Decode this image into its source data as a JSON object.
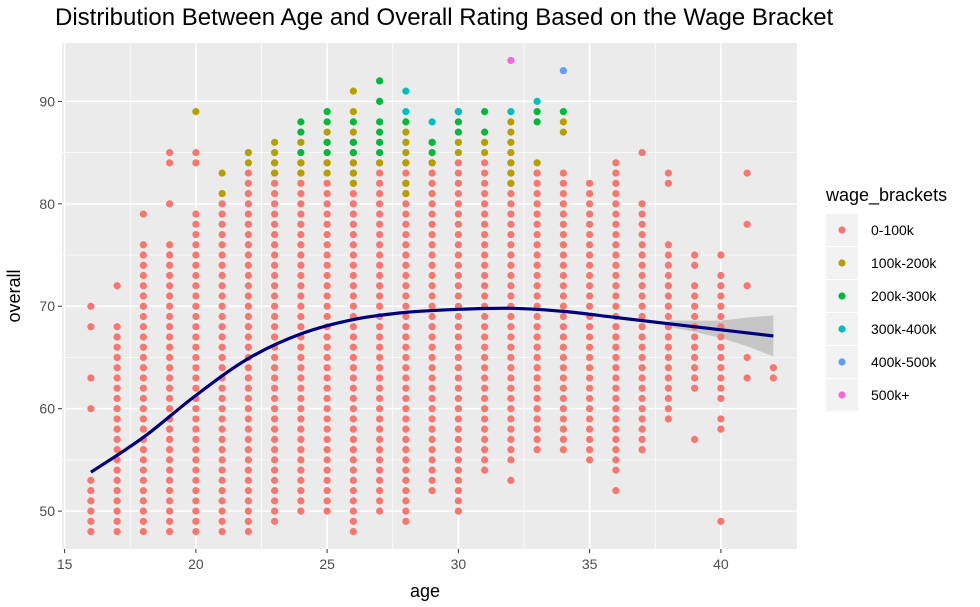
{
  "chart_data": {
    "type": "scatter",
    "title": "Distribution Between Age and Overall Rating Based on the  Wage Bracket",
    "xlabel": "age",
    "ylabel": "overall",
    "xlim": [
      14.9,
      42.9
    ],
    "ylim": [
      46.3,
      95.7
    ],
    "x_ticks": [
      15,
      20,
      25,
      30,
      35,
      40
    ],
    "y_ticks": [
      50,
      60,
      70,
      80,
      90
    ],
    "grid": true,
    "legend": {
      "title": "wage_brackets",
      "position": "right",
      "entries": [
        {
          "label": "0-100k",
          "color": "#F8766D"
        },
        {
          "label": "100k-200k",
          "color": "#B79F00"
        },
        {
          "label": "200k-300k",
          "color": "#00BA38"
        },
        {
          "label": "300k-400k",
          "color": "#00BFC4"
        },
        {
          "label": "400k-500k",
          "color": "#619CFF"
        },
        {
          "label": "500k+",
          "color": "#F564E3"
        }
      ]
    },
    "series": [
      {
        "name": "0-100k",
        "color": "#F8766D",
        "ranges": [
          [
            16,
            48,
            53
          ],
          [
            17,
            48,
            68
          ],
          [
            18,
            48,
            76
          ],
          [
            19,
            48,
            76
          ],
          [
            20,
            48,
            79
          ],
          [
            21,
            48,
            80
          ],
          [
            22,
            48,
            83
          ],
          [
            23,
            49,
            84
          ],
          [
            24,
            51,
            84
          ],
          [
            25,
            51,
            84
          ],
          [
            26,
            49,
            84
          ],
          [
            27,
            52,
            84
          ],
          [
            28,
            51,
            84
          ],
          [
            29,
            53,
            84
          ],
          [
            30,
            51,
            84
          ],
          [
            31,
            55,
            84
          ],
          [
            32,
            55,
            84
          ],
          [
            33,
            56,
            83
          ],
          [
            34,
            56,
            83
          ],
          [
            35,
            56,
            82
          ],
          [
            36,
            54,
            82
          ],
          [
            37,
            57,
            80
          ],
          [
            38,
            59,
            76
          ],
          [
            39,
            62,
            72
          ],
          [
            40,
            62,
            72
          ]
        ],
        "extra": [
          [
            16,
            60
          ],
          [
            16,
            63
          ],
          [
            16,
            68
          ],
          [
            16,
            70
          ],
          [
            17,
            72
          ],
          [
            18,
            79
          ],
          [
            19,
            80
          ],
          [
            19,
            84
          ],
          [
            19,
            85
          ],
          [
            20,
            84
          ],
          [
            20,
            85
          ],
          [
            25,
            50
          ],
          [
            24,
            50
          ],
          [
            26,
            48
          ],
          [
            27,
            50
          ],
          [
            27,
            51
          ],
          [
            28,
            49
          ],
          [
            28,
            50
          ],
          [
            29,
            52
          ],
          [
            30,
            50
          ],
          [
            31,
            54
          ],
          [
            32,
            53
          ],
          [
            33,
            83
          ],
          [
            35,
            55
          ],
          [
            36,
            52
          ],
          [
            36,
            83
          ],
          [
            36,
            84
          ],
          [
            37,
            56
          ],
          [
            37,
            85
          ],
          [
            38,
            82
          ],
          [
            38,
            83
          ],
          [
            39,
            57
          ],
          [
            39,
            74
          ],
          [
            39,
            75
          ],
          [
            40,
            49
          ],
          [
            40,
            58
          ],
          [
            40,
            59
          ],
          [
            40,
            61
          ],
          [
            40,
            73
          ],
          [
            40,
            75
          ],
          [
            41,
            63
          ],
          [
            41,
            65
          ],
          [
            41,
            72
          ],
          [
            41,
            78
          ],
          [
            41,
            83
          ],
          [
            42,
            63
          ],
          [
            42,
            64
          ]
        ]
      },
      {
        "name": "100k-200k",
        "color": "#B79F00",
        "points": [
          [
            20,
            89
          ],
          [
            21,
            81
          ],
          [
            21,
            83
          ],
          [
            22,
            84
          ],
          [
            22,
            85
          ],
          [
            23,
            83
          ],
          [
            23,
            84
          ],
          [
            23,
            85
          ],
          [
            23,
            86
          ],
          [
            24,
            83
          ],
          [
            24,
            84
          ],
          [
            24,
            86
          ],
          [
            25,
            83
          ],
          [
            25,
            84
          ],
          [
            25,
            86
          ],
          [
            25,
            87
          ],
          [
            26,
            82
          ],
          [
            26,
            83
          ],
          [
            26,
            84
          ],
          [
            26,
            85
          ],
          [
            26,
            86
          ],
          [
            26,
            87
          ],
          [
            26,
            89
          ],
          [
            26,
            91
          ],
          [
            27,
            84
          ],
          [
            28,
            81
          ],
          [
            28,
            82
          ],
          [
            28,
            84
          ],
          [
            28,
            85
          ],
          [
            28,
            86
          ],
          [
            28,
            87
          ],
          [
            29,
            84
          ],
          [
            29,
            86
          ],
          [
            30,
            85
          ],
          [
            30,
            86
          ],
          [
            31,
            85
          ],
          [
            31,
            86
          ],
          [
            32,
            82
          ],
          [
            32,
            83
          ],
          [
            32,
            84
          ],
          [
            32,
            85
          ],
          [
            32,
            86
          ],
          [
            32,
            87
          ],
          [
            32,
            88
          ],
          [
            33,
            84
          ],
          [
            34,
            87
          ],
          [
            34,
            88
          ]
        ]
      },
      {
        "name": "200k-300k",
        "color": "#00BA38",
        "points": [
          [
            24,
            85
          ],
          [
            24,
            87
          ],
          [
            24,
            88
          ],
          [
            25,
            85
          ],
          [
            25,
            86
          ],
          [
            25,
            88
          ],
          [
            25,
            89
          ],
          [
            26,
            85
          ],
          [
            26,
            86
          ],
          [
            26,
            88
          ],
          [
            27,
            85
          ],
          [
            27,
            86
          ],
          [
            27,
            87
          ],
          [
            27,
            88
          ],
          [
            27,
            90
          ],
          [
            27,
            92
          ],
          [
            28,
            88
          ],
          [
            29,
            85
          ],
          [
            29,
            86
          ],
          [
            30,
            87
          ],
          [
            30,
            88
          ],
          [
            30,
            89
          ],
          [
            31,
            87
          ],
          [
            31,
            89
          ],
          [
            33,
            88
          ],
          [
            33,
            89
          ],
          [
            34,
            89
          ]
        ]
      },
      {
        "name": "300k-400k",
        "color": "#00BFC4",
        "points": [
          [
            28,
            89
          ],
          [
            28,
            91
          ],
          [
            29,
            88
          ],
          [
            30,
            89
          ],
          [
            32,
            89
          ],
          [
            33,
            90
          ]
        ]
      },
      {
        "name": "400k-500k",
        "color": "#619CFF",
        "points": [
          [
            34,
            93
          ]
        ]
      },
      {
        "name": "500k+",
        "color": "#F564E3",
        "points": [
          [
            32,
            94
          ]
        ]
      }
    ],
    "trend": {
      "color": "#000080",
      "band_color": "#999999",
      "points": [
        [
          16,
          53.8
        ],
        [
          18,
          57.2
        ],
        [
          20,
          61.3
        ],
        [
          22,
          64.9
        ],
        [
          24,
          67.3
        ],
        [
          26,
          68.7
        ],
        [
          28,
          69.4
        ],
        [
          30,
          69.7
        ],
        [
          32,
          69.8
        ],
        [
          34,
          69.5
        ],
        [
          36,
          68.9
        ],
        [
          38,
          68.3
        ],
        [
          40,
          67.7
        ],
        [
          42,
          67.1
        ]
      ],
      "band": [
        [
          38,
          68.0,
          68.6
        ],
        [
          39,
          67.5,
          68.6
        ],
        [
          40,
          66.9,
          68.6
        ],
        [
          41,
          66.1,
          68.9
        ],
        [
          42,
          65.1,
          69.1
        ]
      ]
    }
  }
}
